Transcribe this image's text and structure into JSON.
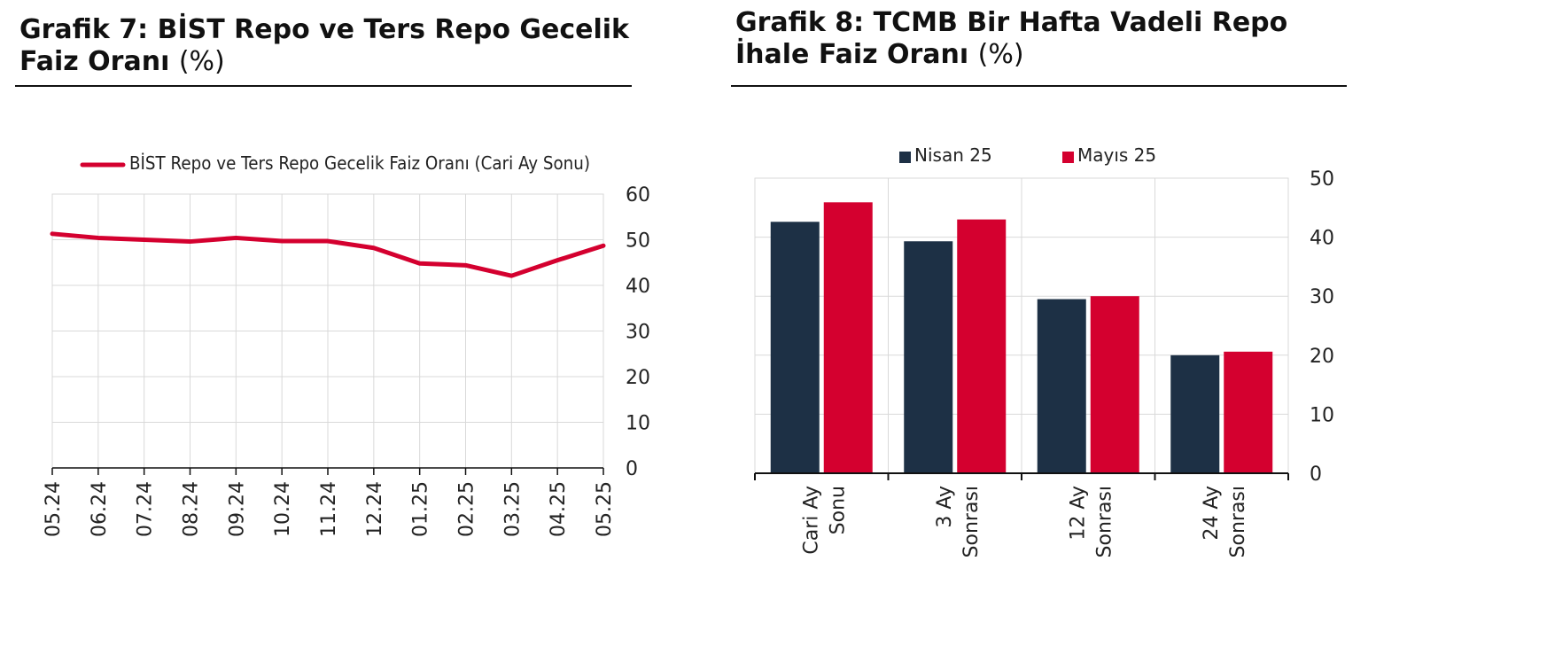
{
  "colors": {
    "red": "#d4002f",
    "navy": "#1d3045",
    "grid": "#d9d9d9",
    "axis": "#111111"
  },
  "chart_data": [
    {
      "type": "line",
      "title": "Grafik 7:  BİST Repo ve Ters Repo Gecelik Faiz Oranı",
      "title_unit": "(%)",
      "categories": [
        "05.24",
        "06.24",
        "07.24",
        "08.24",
        "09.24",
        "10.24",
        "11.24",
        "12.24",
        "01.25",
        "02.25",
        "03.25",
        "04.25",
        "05.25"
      ],
      "series": [
        {
          "name": "BİST Repo ve Ters Repo Gecelik Faiz Oranı (Cari Ay Sonu)",
          "values": [
            51.3,
            50.4,
            50.0,
            49.6,
            50.4,
            49.7,
            49.7,
            48.2,
            44.8,
            44.4,
            42.1,
            45.5,
            48.7
          ]
        }
      ],
      "ylim": [
        0,
        60
      ],
      "yticks": [
        "0",
        "10",
        "20",
        "30",
        "40",
        "50",
        "60"
      ],
      "y_axis_side": "right",
      "grid": true,
      "legend_position": "top"
    },
    {
      "type": "bar",
      "title": "Grafik 8: TCMB Bir Hafta Vadeli Repo İhale Faiz Oranı",
      "title_unit": "(%)",
      "categories": [
        [
          "Cari Ay",
          "Sonu"
        ],
        [
          "3 Ay",
          "Sonrası"
        ],
        [
          "12 Ay",
          "Sonrası"
        ],
        [
          "24 Ay",
          "Sonrası"
        ]
      ],
      "series": [
        {
          "name": "Nisan 25",
          "values": [
            42.6,
            39.3,
            29.5,
            20.0
          ]
        },
        {
          "name": "Mayıs 25",
          "values": [
            45.9,
            43.0,
            30.0,
            20.6
          ]
        }
      ],
      "ylim": [
        0,
        50
      ],
      "yticks": [
        "0",
        "10",
        "20",
        "30",
        "40",
        "50"
      ],
      "y_axis_side": "right",
      "grid": true,
      "legend_position": "top"
    }
  ]
}
